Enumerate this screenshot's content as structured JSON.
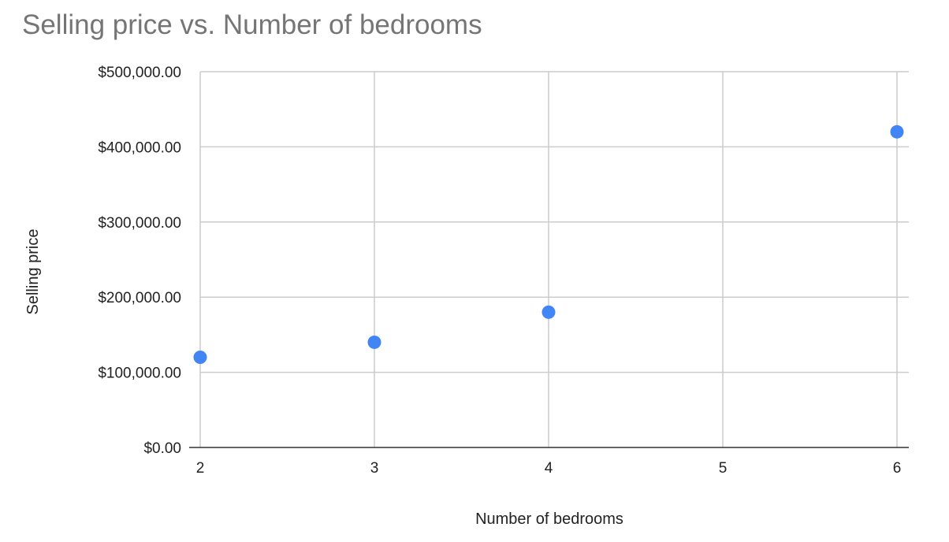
{
  "chart_data": {
    "type": "scatter",
    "title": "Selling price vs. Number of bedrooms",
    "xlabel": "Number of bedrooms",
    "ylabel": "Selling price",
    "xlim": [
      2,
      6
    ],
    "ylim": [
      0,
      500000
    ],
    "x_ticks": [
      2,
      3,
      4,
      5,
      6
    ],
    "y_ticks": [
      0,
      100000,
      200000,
      300000,
      400000,
      500000
    ],
    "x_tick_labels": [
      "2",
      "3",
      "4",
      "5",
      "6"
    ],
    "y_tick_labels": [
      "$0.00",
      "$100,000.00",
      "$200,000.00",
      "$300,000.00",
      "$400,000.00",
      "$500,000.00"
    ],
    "grid": true,
    "legend": "none",
    "series": [
      {
        "color": "#4285f4",
        "points": [
          {
            "x": 2,
            "y": 120000
          },
          {
            "x": 3,
            "y": 140000
          },
          {
            "x": 4,
            "y": 180000
          },
          {
            "x": 6,
            "y": 420000
          }
        ]
      }
    ]
  }
}
